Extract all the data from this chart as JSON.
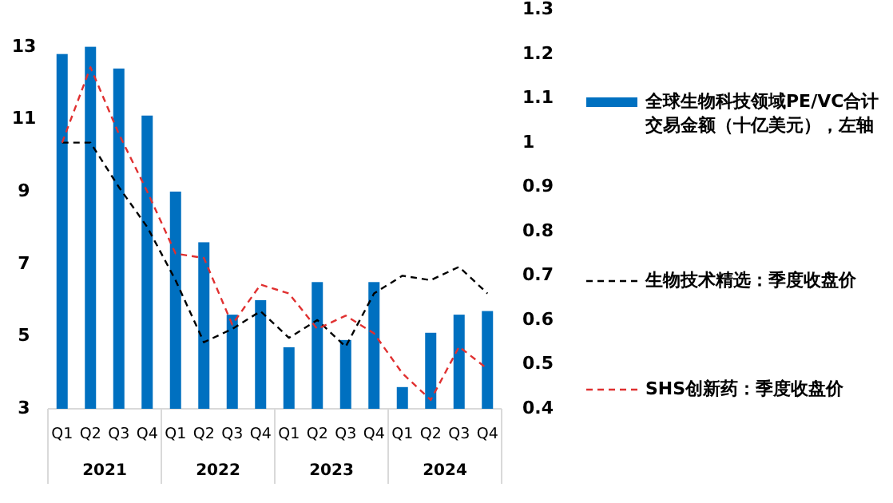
{
  "chart_data": {
    "type": "bar",
    "categories": [
      "Q1",
      "Q2",
      "Q3",
      "Q4",
      "Q1",
      "Q2",
      "Q3",
      "Q4",
      "Q1",
      "Q2",
      "Q3",
      "Q4",
      "Q1",
      "Q2",
      "Q3",
      "Q4"
    ],
    "annotations": [
      "2021",
      "2022",
      "2023",
      "2024"
    ],
    "series": [
      {
        "name": "全球生物科技领域PE/VC合计交易金额（十亿美元），左轴",
        "color": "#0070c0",
        "values": [
          12.8,
          13.0,
          12.4,
          11.1,
          9.0,
          7.6,
          5.6,
          6.0,
          4.7,
          6.5,
          4.9,
          6.5,
          3.6,
          5.1,
          5.6,
          5.7
        ]
      },
      {
        "name": "生物技术精选：季度收盘价",
        "type": "line",
        "axis": "y2",
        "color": "#000000",
        "line_style": "dashed",
        "values": [
          1.0,
          1.0,
          0.9,
          0.81,
          0.69,
          0.55,
          0.58,
          0.62,
          0.56,
          0.6,
          0.54,
          0.66,
          0.7,
          0.69,
          0.72,
          0.66
        ]
      },
      {
        "name": "SHS创新药：季度收盘价",
        "type": "line",
        "axis": "y2",
        "color": "#e03030",
        "line_style": "dashed",
        "values": [
          1.0,
          1.17,
          1.02,
          0.89,
          0.75,
          0.74,
          0.59,
          0.68,
          0.66,
          0.58,
          0.61,
          0.57,
          0.48,
          0.42,
          0.54,
          0.49
        ]
      }
    ],
    "ylim": [
      3,
      13
    ],
    "yticks": [
      3,
      5,
      7,
      9,
      11,
      13
    ],
    "y2lim": [
      0.4,
      1.3
    ],
    "y2ticks": [
      0.4,
      0.5,
      0.6,
      0.7,
      0.8,
      0.9,
      1,
      1.1,
      1.2,
      1.3
    ],
    "grid": false,
    "legend": "right",
    "marker": "none"
  }
}
